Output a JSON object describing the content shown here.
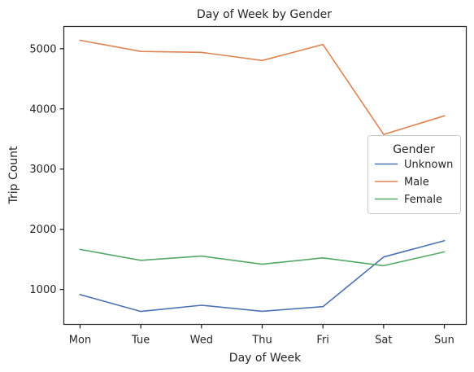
{
  "chart_data": {
    "type": "line",
    "title": "Day of Week by Gender",
    "xlabel": "Day of Week",
    "ylabel": "Trip Count",
    "categories": [
      "Mon",
      "Tue",
      "Wed",
      "Thu",
      "Fri",
      "Sat",
      "Sun"
    ],
    "yticks": [
      1000,
      2000,
      3000,
      4000,
      5000
    ],
    "ylim": [
      420,
      5370
    ],
    "grid": false,
    "legend": {
      "title": "Gender",
      "placement": "center-right"
    },
    "series": [
      {
        "name": "Unknown",
        "color": "#4c72b0",
        "values": [
          915,
          635,
          738,
          638,
          715,
          1540,
          1810
        ]
      },
      {
        "name": "Male",
        "color": "#dd8452",
        "values": [
          5140,
          4955,
          4940,
          4805,
          5070,
          3575,
          3885
        ]
      },
      {
        "name": "Female",
        "color": "#55a868",
        "values": [
          1665,
          1485,
          1555,
          1420,
          1525,
          1395,
          1625
        ]
      }
    ]
  }
}
